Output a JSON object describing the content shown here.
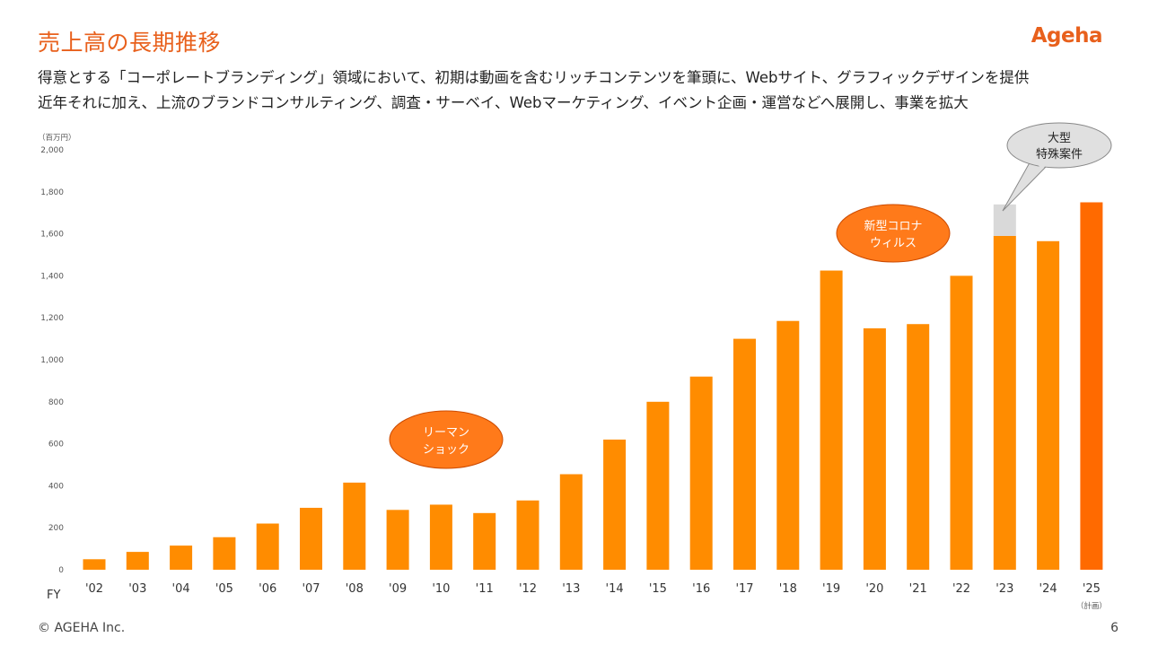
{
  "header": {
    "title": "売上高の長期推移",
    "logo": "Ageha",
    "subtitle_1": "得意とする「コーポレートブランディング」領域において、初期は動画を含むリッチコンテンツを筆頭に、Webサイト、グラフィックデザインを提供",
    "subtitle_2": "近年それに加え、上流のブランドコンサルティング、調査・サーベイ、Webマーケティング、イベント企画・運営などへ展開し、事業を拡大"
  },
  "footer": {
    "copyright": "© AGEHA Inc.",
    "page_number": "6"
  },
  "colors": {
    "accent": "#e8601c",
    "bar": "#ff8c00",
    "bar_plan": "#ff6a00",
    "bar_special": "#d9d9d9",
    "bubble": "#ff7a1a",
    "callout": "#e0e0e0"
  },
  "chart_data": {
    "type": "bar",
    "unit_label": "（百万円）",
    "x_axis_label": "FY",
    "plan_note": "（計画）",
    "ylim": [
      0,
      2000
    ],
    "yticks": [
      0,
      200,
      400,
      600,
      800,
      1000,
      1200,
      1400,
      1600,
      1800,
      2000
    ],
    "ytick_labels": [
      "0",
      "200",
      "400",
      "600",
      "800",
      "1,000",
      "1,200",
      "1,400",
      "1,600",
      "1,800",
      "2,000"
    ],
    "categories": [
      "'02",
      "'03",
      "'04",
      "'05",
      "'06",
      "'07",
      "'08",
      "'09",
      "'10",
      "'11",
      "'12",
      "'13",
      "'14",
      "'15",
      "'16",
      "'17",
      "'18",
      "'19",
      "'20",
      "'21",
      "'22",
      "'23",
      "'24",
      "'25"
    ],
    "series": [
      {
        "values": [
          50,
          85,
          115,
          155,
          220,
          295,
          415,
          285,
          310,
          270,
          330,
          455,
          620,
          800,
          920,
          1100,
          1185,
          1425,
          1150,
          1170,
          1400,
          1590,
          1565,
          1750
        ]
      },
      {
        "values": [
          0,
          0,
          0,
          0,
          0,
          0,
          0,
          0,
          0,
          0,
          0,
          0,
          0,
          0,
          0,
          0,
          0,
          0,
          0,
          0,
          0,
          150,
          0,
          0
        ]
      }
    ],
    "annotations": [
      {
        "text_1": "リーマン",
        "text_2": "ショック",
        "near": "'10"
      },
      {
        "text_1": "新型コロナ",
        "text_2": "ウィルス",
        "near": "'20"
      },
      {
        "text_1": "大型",
        "text_2": "特殊案件",
        "near": "'23"
      }
    ],
    "grid": false,
    "legend": "none"
  }
}
